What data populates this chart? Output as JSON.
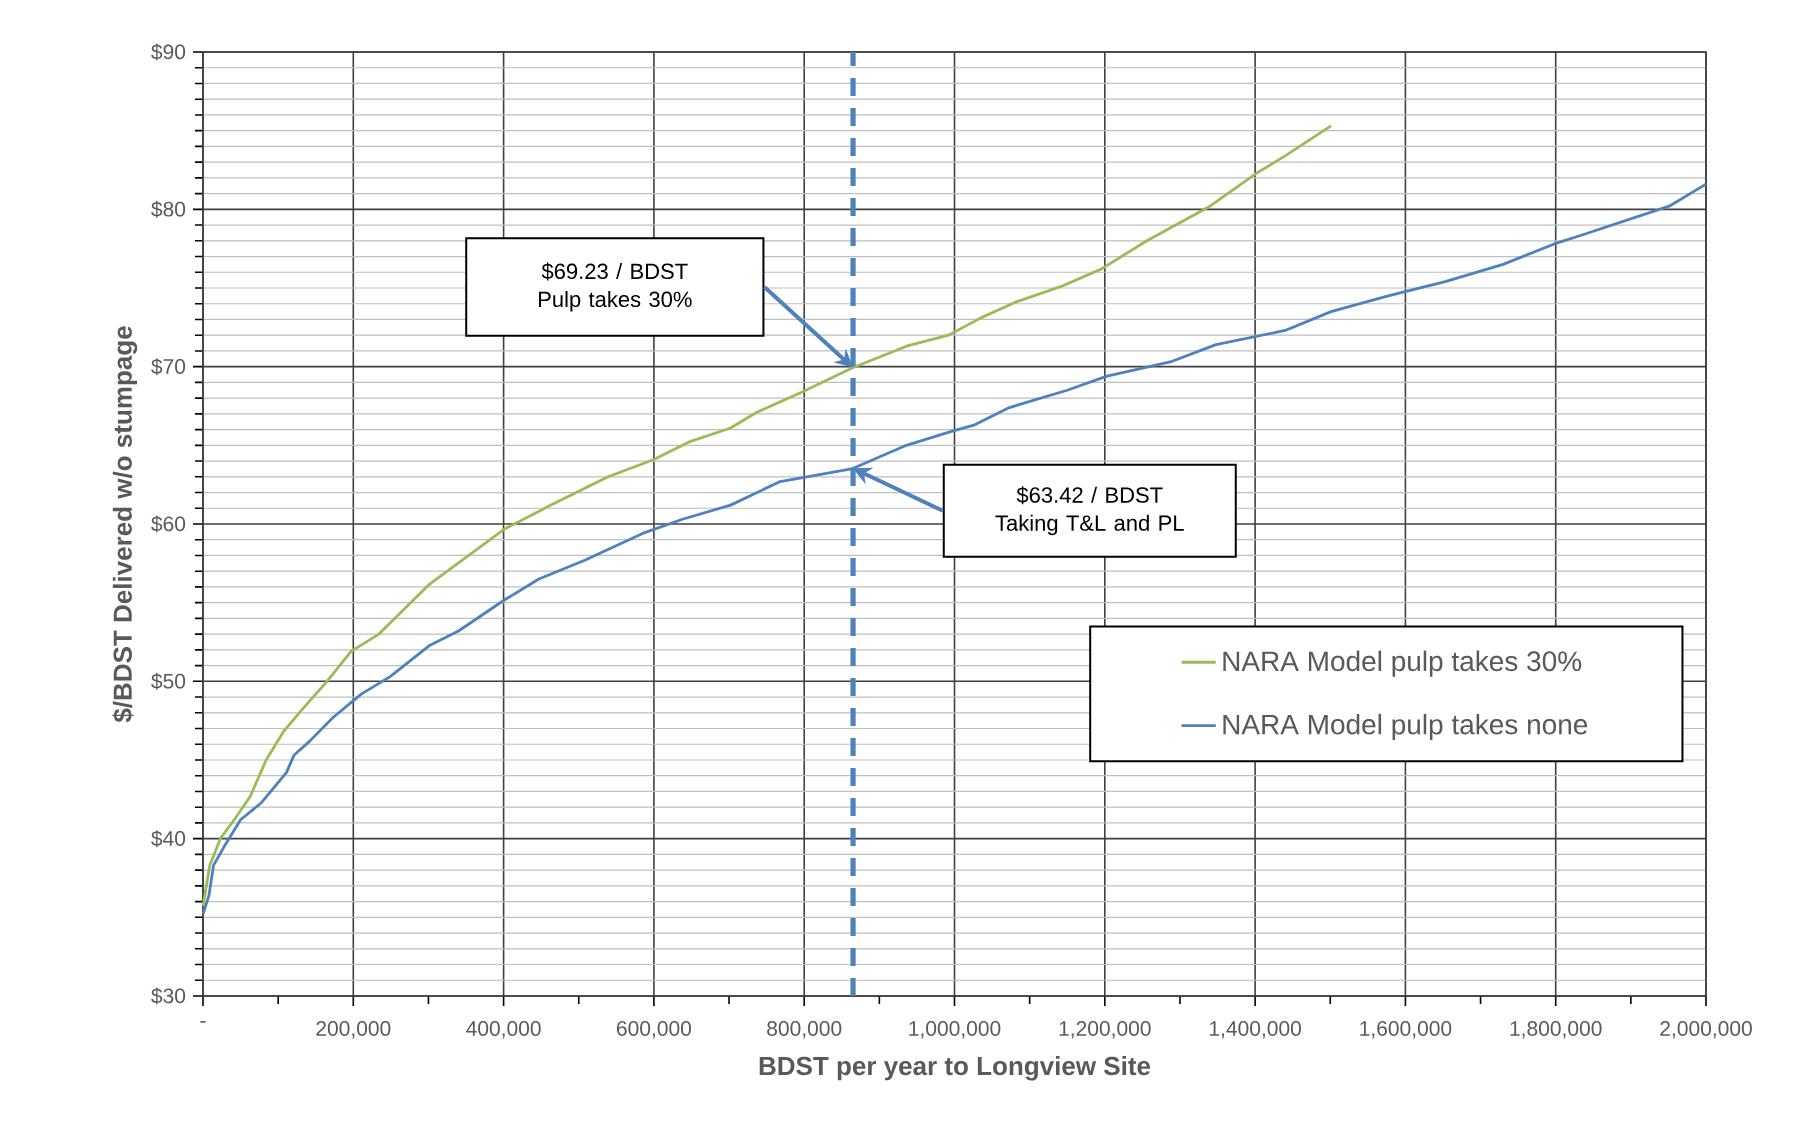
{
  "chart_data": {
    "type": "line",
    "xlabel": "BDST per year to Longview Site",
    "ylabel": "$/BDST Delivered w/o stumpage",
    "xlim": [
      0,
      2000000
    ],
    "ylim": [
      30,
      90
    ],
    "xticks": [
      {
        "value": 0,
        "label": "-"
      },
      {
        "value": 200000,
        "label": "200,000"
      },
      {
        "value": 400000,
        "label": "400,000"
      },
      {
        "value": 600000,
        "label": "600,000"
      },
      {
        "value": 800000,
        "label": "800,000"
      },
      {
        "value": 1000000,
        "label": "1,000,000"
      },
      {
        "value": 1200000,
        "label": "1,200,000"
      },
      {
        "value": 1400000,
        "label": "1,400,000"
      },
      {
        "value": 1600000,
        "label": "1,600,000"
      },
      {
        "value": 1800000,
        "label": "1,800,000"
      },
      {
        "value": 2000000,
        "label": "2,000,000"
      }
    ],
    "yticks": [
      {
        "value": 30,
        "label": "$30"
      },
      {
        "value": 40,
        "label": "$40"
      },
      {
        "value": 50,
        "label": "$50"
      },
      {
        "value": 60,
        "label": "$60"
      },
      {
        "value": 70,
        "label": "$70"
      },
      {
        "value": 80,
        "label": "$80"
      },
      {
        "value": 90,
        "label": "$90"
      }
    ],
    "grid": true,
    "legend": "right",
    "marker": "none",
    "line_style": "solid",
    "series": [
      {
        "name": "NARA Model pulp takes 30%",
        "color": "#9bbb59",
        "x": [
          0,
          9000,
          23000,
          43000,
          63000,
          84000,
          107000,
          130000,
          165000,
          197000,
          234000,
          302000,
          402000,
          463000,
          539000,
          600000,
          646000,
          702000,
          737000,
          798000,
          863000,
          936000,
          992000,
          1035000,
          1081000,
          1142000,
          1195000,
          1256000,
          1340000,
          1402000,
          1440000,
          1501000
        ],
        "values": [
          35.7,
          38.3,
          40,
          41.3,
          42.7,
          45,
          46.8,
          48.1,
          50,
          51.9,
          53,
          56.2,
          59.7,
          61.2,
          63,
          64.1,
          65.2,
          66.1,
          67.1,
          68.4,
          69.9,
          71.3,
          72,
          73.1,
          74.1,
          75.1,
          76.2,
          78,
          80.2,
          82.3,
          83.4,
          85.3
        ]
      },
      {
        "name": "NARA Model pulp takes none",
        "color": "#4f81bd",
        "x": [
          0,
          8000,
          14000,
          27000,
          50000,
          78000,
          111000,
          121000,
          142000,
          173000,
          211000,
          249000,
          302000,
          340000,
          402000,
          447000,
          508000,
          585000,
          638000,
          702000,
          768000,
          863000,
          936000,
          997000,
          1027000,
          1073000,
          1150000,
          1203000,
          1287000,
          1348000,
          1440000,
          1501000,
          1577000,
          1653000,
          1730000,
          1798000,
          1837000,
          1951000,
          2000000
        ],
        "values": [
          35.2,
          36.4,
          38.3,
          39.4,
          41.2,
          42.3,
          44.2,
          45.3,
          46.2,
          47.7,
          49.2,
          50.3,
          52.3,
          53.2,
          55.2,
          56.5,
          57.7,
          59.4,
          60.3,
          61.2,
          62.7,
          63.5,
          65,
          65.9,
          66.3,
          67.4,
          68.5,
          69.4,
          70.3,
          71.4,
          72.3,
          73.5,
          74.5,
          75.4,
          76.5,
          77.8,
          78.4,
          80.2,
          81.6
        ]
      }
    ],
    "ref_lines": [
      {
        "axis": "x",
        "value": 865000,
        "color": "#4f81bd",
        "line_style": "dashed"
      }
    ],
    "annotations": [
      "$69.23 / BDST Pulp takes 30%",
      "$63.42 / BDST Taking T&L and PL"
    ]
  }
}
